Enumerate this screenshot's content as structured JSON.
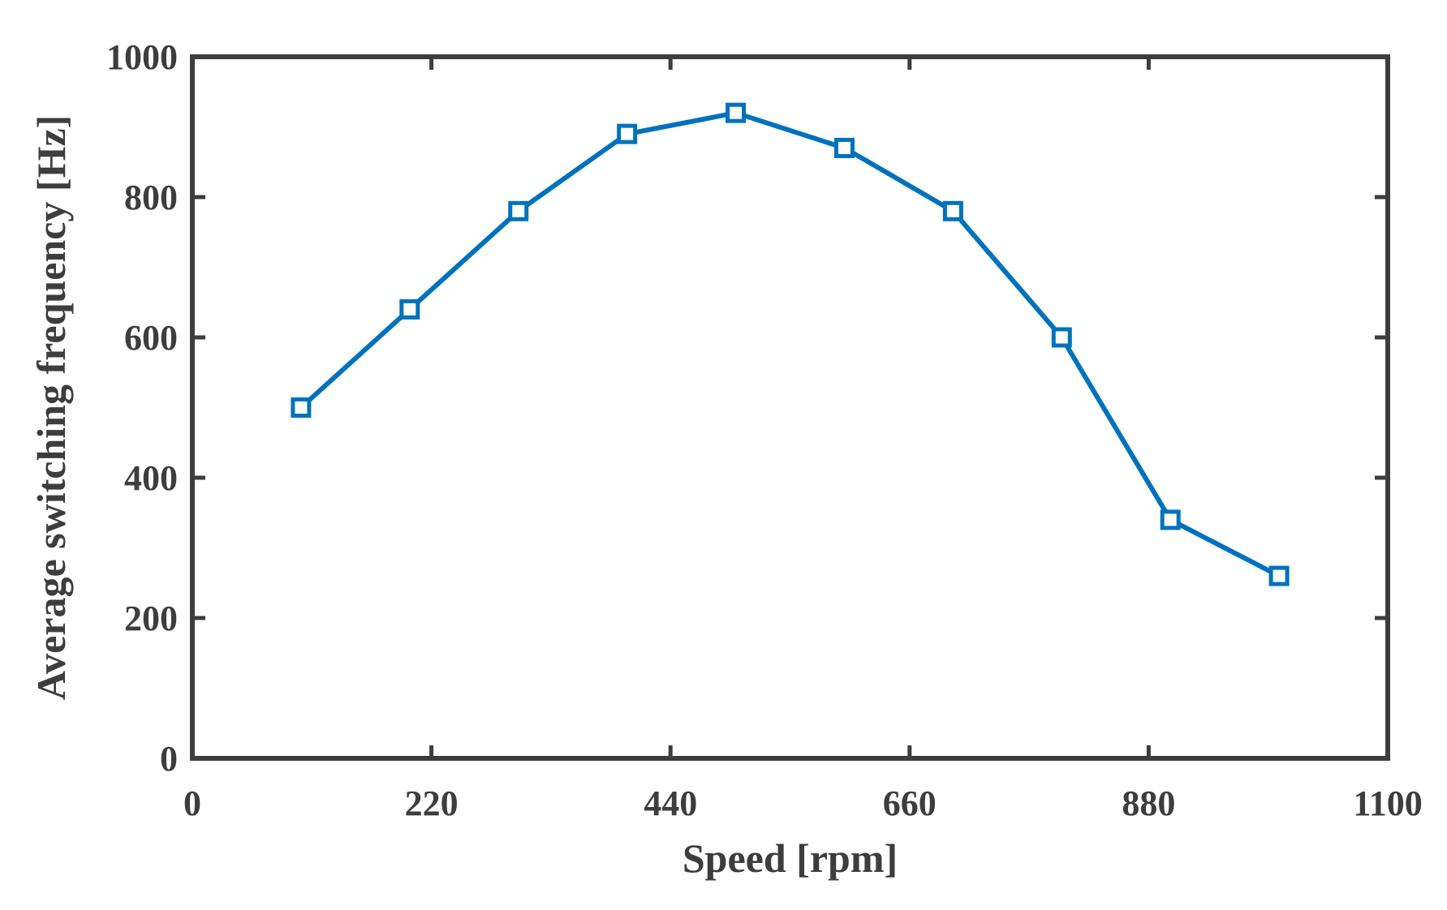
{
  "chart_data": {
    "type": "line",
    "title": "",
    "xlabel": "Speed [rpm]",
    "ylabel": "Average switching frequency [Hz]",
    "xlim": [
      0,
      1100
    ],
    "ylim": [
      0,
      1000
    ],
    "xticks": [
      0,
      220,
      440,
      660,
      880,
      1100
    ],
    "yticks": [
      0,
      200,
      400,
      600,
      800,
      1000
    ],
    "grid": false,
    "legend": "none",
    "series": [
      {
        "color": "#0072bd",
        "marker": "square",
        "x": [
          100,
          200,
          300,
          400,
          500,
          600,
          700,
          800,
          900,
          1000
        ],
        "y": [
          500,
          640,
          780,
          890,
          920,
          870,
          780,
          600,
          340,
          260
        ]
      }
    ]
  },
  "colors": {
    "axis": "#3d3d3d",
    "series": "#0072bd",
    "background": "#ffffff"
  }
}
